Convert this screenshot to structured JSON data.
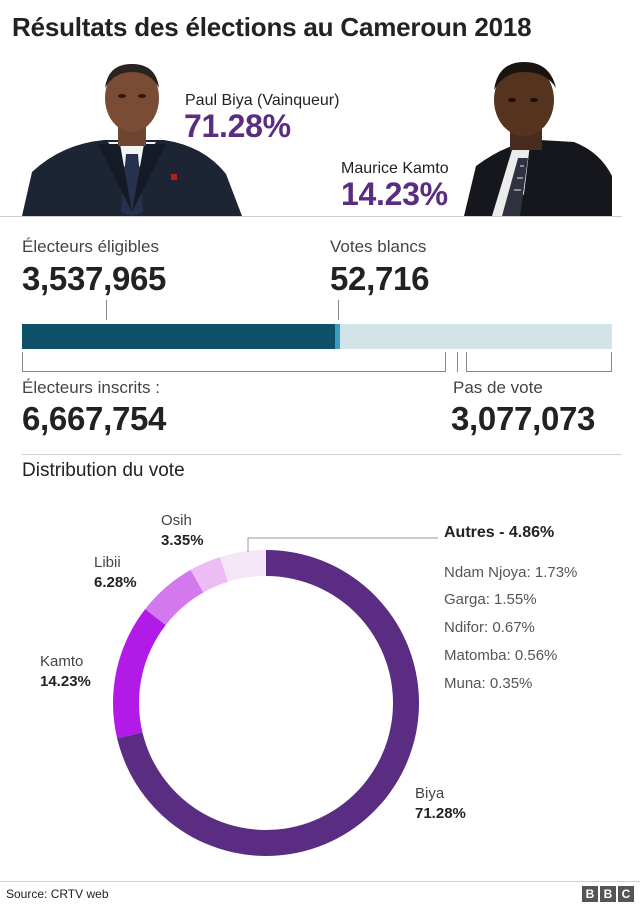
{
  "title": "Résultats des élections au Cameroun 2018",
  "candidates": {
    "biya": {
      "name": "Paul Biya (Vainqueur)",
      "pct": "71.28%"
    },
    "kamto": {
      "name": "Maurice Kamto",
      "pct": "14.23%"
    }
  },
  "stats": {
    "eligible_label": "Électeurs éligibles",
    "eligible_value": "3,537,965",
    "blank_label": "Votes blancs",
    "blank_value": "52,716",
    "registered_label": "Électeurs inscrits :",
    "registered_value": "6,667,754",
    "novote_label": "Pas de vote",
    "novote_value": "3,077,073"
  },
  "colors": {
    "accent_purple": "#5a2d82",
    "bar_votes": "#0d5068",
    "bar_blank": "#3d9bbd",
    "bar_bg": "#d3e4e8"
  },
  "section_title": "Distribution du vote",
  "chart_data": [
    {
      "type": "bar",
      "orientation": "horizontal-stacked",
      "total": 6667754,
      "series": [
        {
          "name": "Électeurs éligibles",
          "value": 3537965
        },
        {
          "name": "Votes blancs",
          "value": 52716
        },
        {
          "name": "Pas de vote",
          "value": 3077073
        }
      ]
    },
    {
      "type": "pie",
      "style": "donut",
      "title": "Distribution du vote",
      "slices": [
        {
          "label": "Biya",
          "value": 71.28,
          "display": "71.28%",
          "color": "#5a2d82"
        },
        {
          "label": "Kamto",
          "value": 14.23,
          "display": "14.23%",
          "color": "#b21ae8"
        },
        {
          "label": "Libii",
          "value": 6.28,
          "display": "6.28%",
          "color": "#d478ee"
        },
        {
          "label": "Osih",
          "value": 3.35,
          "display": "3.35%",
          "color": "#ecbdf5"
        },
        {
          "label": "Autres - 4.86%",
          "value": 4.86,
          "display": "4.86%",
          "color": "#f4e6f7"
        }
      ],
      "others_breakdown": [
        {
          "text": "Ndam Njoya: 1.73%"
        },
        {
          "text": "Garga: 1.55%"
        },
        {
          "text": "Ndifor: 0.67%"
        },
        {
          "text": "Matomba: 0.56%"
        },
        {
          "text": "Muna: 0.35%"
        }
      ]
    }
  ],
  "footer": {
    "source": "Source: CRTV web",
    "logo_letters": [
      "B",
      "B",
      "C"
    ]
  }
}
